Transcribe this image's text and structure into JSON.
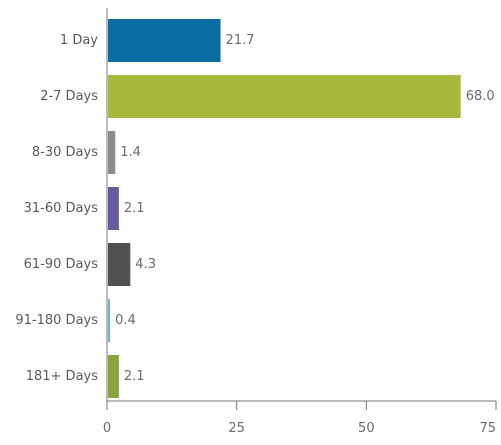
{
  "chart_data": {
    "type": "bar",
    "orientation": "horizontal",
    "categories": [
      "1 Day",
      "2-7 Days",
      "8-30 Days",
      "31-60 Days",
      "61-90 Days",
      "91-180 Days",
      "181+ Days"
    ],
    "values": [
      21.7,
      68.0,
      1.4,
      2.1,
      4.3,
      0.4,
      2.1
    ],
    "value_labels": [
      "21.7",
      "68.0",
      "1.4",
      "2.1",
      "4.3",
      "0.4",
      "2.1"
    ],
    "bar_colors": [
      "#0a6ea3",
      "#a8b83c",
      "#8c8c8c",
      "#6b5aa0",
      "#4f524f",
      "#6fb6cf",
      "#8aa63a"
    ],
    "xlim": [
      0,
      75
    ],
    "x_ticks": [
      0,
      25,
      50,
      75
    ],
    "grid": false,
    "title": "",
    "xlabel": "",
    "ylabel": ""
  }
}
